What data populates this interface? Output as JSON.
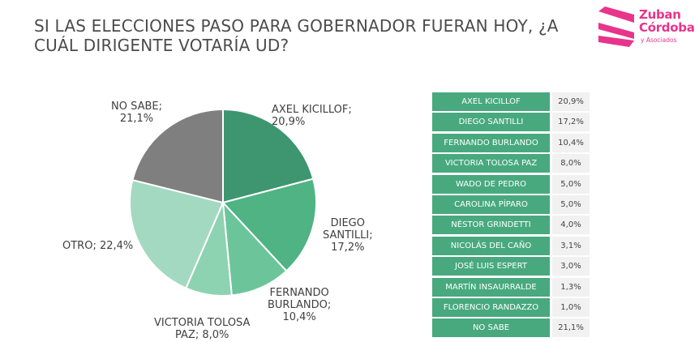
{
  "header": {
    "title_line1": "SI LAS ELECCIONES PASO PARA GOBERNADOR FUERAN HOY, ¿A",
    "title_line2": "CUÁL DIRIGENTE VOTARÍA UD?"
  },
  "logo": {
    "line1": "Zuban",
    "line2": "Córdoba",
    "line3": "y Asociados",
    "color": "#e8348b"
  },
  "chart_data": [
    {
      "type": "pie",
      "title": "SI LAS ELECCIONES PASO PARA GOBERNADOR FUERAN HOY, ¿A CUÁL DIRIGENTE VOTARÍA UD?",
      "slices": [
        {
          "label_lines": [
            "AXEL KICILLOF;",
            "20,9%"
          ],
          "value": 20.9,
          "color": "#3d9670"
        },
        {
          "label_lines": [
            "DIEGO",
            "SANTILLI;",
            "17,2%"
          ],
          "value": 17.2,
          "color": "#4fb384"
        },
        {
          "label_lines": [
            "FERNANDO",
            "BURLANDO;",
            "10,4%"
          ],
          "value": 10.4,
          "color": "#6cc59a"
        },
        {
          "label_lines": [
            "VICTORIA TOLOSA",
            "PAZ; 8,0%"
          ],
          "value": 8.0,
          "color": "#8ed3b1"
        },
        {
          "label_lines": [
            "OTRO; 22,4%"
          ],
          "value": 22.4,
          "color": "#a3d9c1"
        },
        {
          "label_lines": [
            "NO SABE;",
            "21,1%"
          ],
          "value": 21.1,
          "color": "#7f7f7f"
        }
      ]
    },
    {
      "type": "table",
      "rows": [
        {
          "name": "AXEL KICILLOF",
          "value": "20,9%"
        },
        {
          "name": "DIEGO SANTILLI",
          "value": "17,2%"
        },
        {
          "name": "FERNANDO BURLANDO",
          "value": "10,4%"
        },
        {
          "name": "VICTORIA TOLOSA PAZ",
          "value": "8,0%"
        },
        {
          "name": "WADO DE PEDRO",
          "value": "5,0%"
        },
        {
          "name": "CAROLINA PÍPARO",
          "value": "5,0%"
        },
        {
          "name": "NÉSTOR GRINDETTI",
          "value": "4,0%"
        },
        {
          "name": "NICOLÁS DEL CAÑO",
          "value": "3,1%"
        },
        {
          "name": "JOSÉ LUIS ESPERT",
          "value": "3,0%"
        },
        {
          "name": "MARTÍN INSAURRALDE",
          "value": "1,3%"
        },
        {
          "name": "FLORENCIO RANDAZZO",
          "value": "1,0%"
        },
        {
          "name": "NO SABE",
          "value": "21,1%"
        }
      ]
    }
  ]
}
